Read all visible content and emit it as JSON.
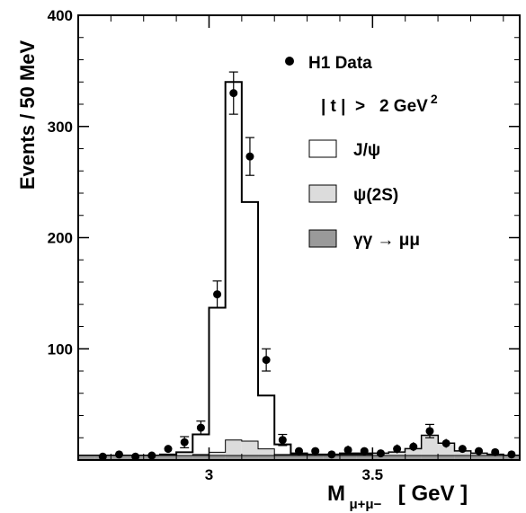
{
  "chart_data": {
    "type": "bar",
    "title": "",
    "xlabel_main": "M",
    "xlabel_sub": "μ+μ−",
    "xlabel_unit": "[ GeV ]",
    "ylabel": "Events / 50 MeV",
    "xlim": [
      2.6,
      3.95
    ],
    "ylim": [
      0,
      400
    ],
    "x_ticks": [
      3,
      3.5
    ],
    "x_tick_labels": [
      "3",
      "3.5"
    ],
    "y_ticks": [
      100,
      200,
      300,
      400
    ],
    "y_tick_labels": [
      "100",
      "200",
      "300",
      "400"
    ],
    "cut_label": "| t |  >   2 GeV",
    "cut_exponent": "2",
    "legend_position": "top-right",
    "bin_edges": [
      2.6,
      2.65,
      2.7,
      2.75,
      2.8,
      2.85,
      2.9,
      2.95,
      3.0,
      3.05,
      3.1,
      3.15,
      3.2,
      3.25,
      3.3,
      3.35,
      3.4,
      3.45,
      3.5,
      3.55,
      3.6,
      3.65,
      3.7,
      3.75,
      3.8,
      3.85,
      3.9,
      3.95
    ],
    "series": [
      {
        "name": "H1 Data",
        "kind": "points",
        "x": [
          2.675,
          2.725,
          2.775,
          2.825,
          2.875,
          2.925,
          2.975,
          3.025,
          3.075,
          3.125,
          3.175,
          3.225,
          3.275,
          3.325,
          3.375,
          3.425,
          3.475,
          3.525,
          3.575,
          3.625,
          3.675,
          3.725,
          3.775,
          3.825,
          3.875,
          3.925
        ],
        "y": [
          3,
          5,
          3,
          4,
          10,
          16,
          29,
          149,
          330,
          273,
          90,
          18,
          8,
          8,
          5,
          9,
          8,
          6,
          10,
          12,
          26,
          15,
          10,
          8,
          7,
          5
        ],
        "err": [
          2,
          2,
          2,
          2,
          3,
          5,
          6,
          12,
          19,
          17,
          10,
          5,
          3,
          3,
          3,
          4,
          3,
          3,
          4,
          4,
          6,
          4,
          3,
          3,
          3,
          3
        ]
      },
      {
        "name": "J/ψ",
        "kind": "histogram",
        "fill": "#ffffff",
        "values": [
          4,
          4,
          4,
          4,
          4,
          5,
          7,
          23,
          137,
          340,
          232,
          58,
          14,
          6,
          5,
          5,
          6,
          6,
          6,
          7,
          10,
          22,
          15,
          8,
          6,
          5,
          4
        ]
      },
      {
        "name": "ψ(2S)",
        "kind": "histogram",
        "fill": "#dcdcdc",
        "values": [
          4,
          4,
          4,
          4,
          4,
          4,
          4,
          5,
          7,
          18,
          17,
          10,
          5,
          5,
          5,
          5,
          5,
          5,
          6,
          7,
          10,
          22,
          15,
          8,
          6,
          5,
          4
        ]
      },
      {
        "name": "γγ → μμ",
        "kind": "histogram",
        "fill": "#9a9a9a",
        "values": [
          4,
          4,
          4,
          4,
          4,
          4,
          4,
          4,
          4,
          4,
          4,
          4,
          4,
          4,
          4,
          4,
          4,
          4,
          4,
          4,
          4,
          4,
          4,
          4,
          4,
          4,
          4
        ]
      }
    ]
  }
}
